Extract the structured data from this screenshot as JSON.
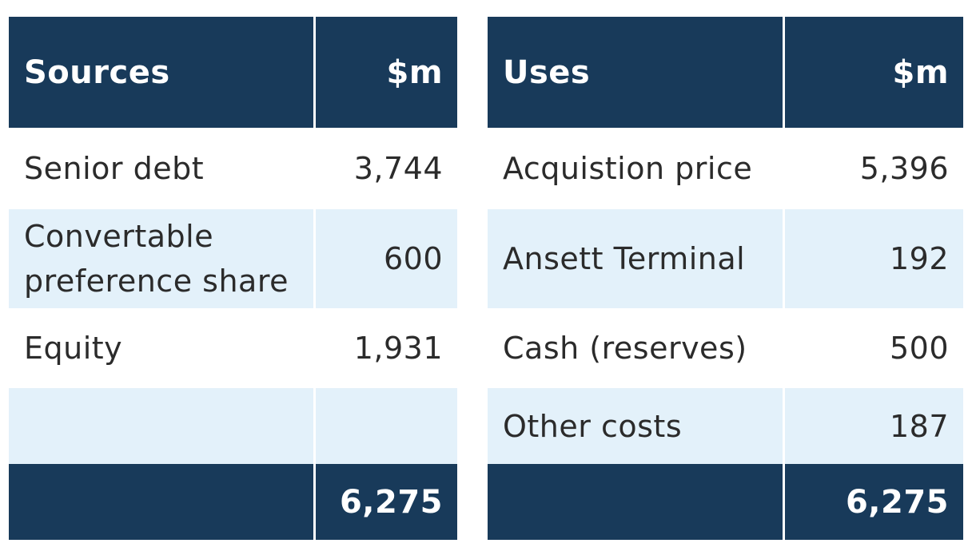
{
  "sources": {
    "header": {
      "label": "Sources",
      "unit": "$m"
    },
    "rows": [
      {
        "label": "Senior debt",
        "value": "3,744"
      },
      {
        "label_line1": "Convertable",
        "label_line2": "preference share",
        "value": "600"
      },
      {
        "label": "Equity",
        "value": "1,931"
      },
      {
        "label": "",
        "value": ""
      }
    ],
    "total": "6,275"
  },
  "uses": {
    "header": {
      "label": "Uses",
      "unit": "$m"
    },
    "rows": [
      {
        "label": "Acquistion price",
        "value": "5,396"
      },
      {
        "label": "Ansett Terminal",
        "value": "192"
      },
      {
        "label": "Cash (reserves)",
        "value": "500"
      },
      {
        "label": "Other costs",
        "value": "187"
      }
    ],
    "total": "6,275"
  },
  "colors": {
    "header_bg": "#183a5a",
    "alt_row_bg": "#e3f1fa",
    "text": "#2b2b2b"
  }
}
